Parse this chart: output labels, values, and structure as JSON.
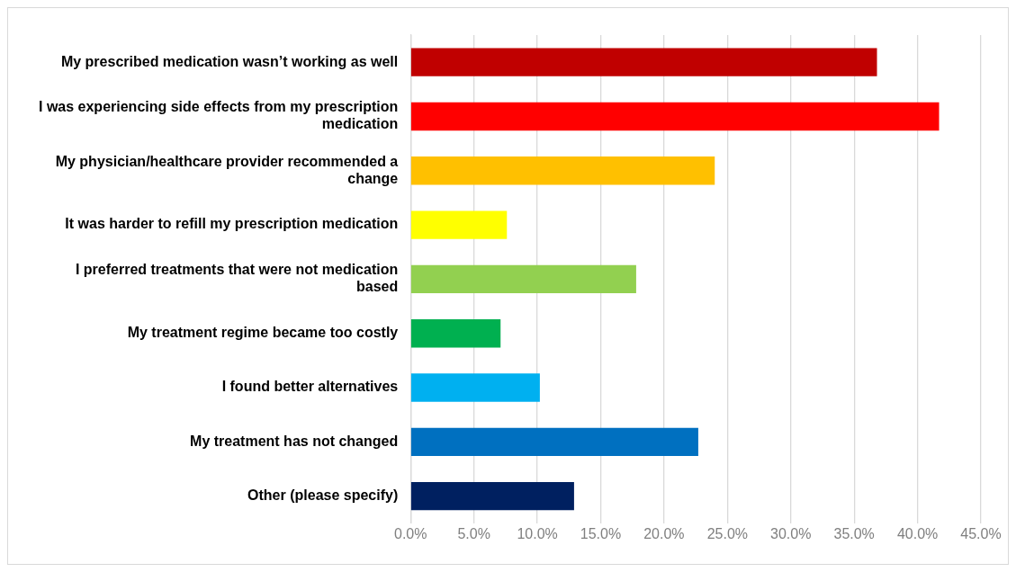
{
  "chart_data": {
    "type": "bar",
    "orientation": "horizontal",
    "categories": [
      "My prescribed medication wasn’t working as well",
      "I was experiencing side effects from my prescription medication",
      "My physician/healthcare provider recommended a change",
      "It was harder to refill my prescription medication",
      "I preferred treatments that were not medication based",
      "My treatment regime became too costly",
      "I found better alternatives",
      "My treatment has not changed",
      "Other (please specify)"
    ],
    "values": [
      36.8,
      41.7,
      24.0,
      7.6,
      17.8,
      7.1,
      10.2,
      22.7,
      12.9
    ],
    "colors": [
      "#c00000",
      "#ff0000",
      "#ffc000",
      "#ffff00",
      "#92d050",
      "#00b050",
      "#00b0f0",
      "#0070c0",
      "#002060"
    ],
    "xlim": [
      0,
      45
    ],
    "xticks": [
      {
        "value": 0,
        "label": "0.0%"
      },
      {
        "value": 5,
        "label": "5.0%"
      },
      {
        "value": 10,
        "label": "10.0%"
      },
      {
        "value": 15,
        "label": "15.0%"
      },
      {
        "value": 20,
        "label": "20.0%"
      },
      {
        "value": 25,
        "label": "25.0%"
      },
      {
        "value": 30,
        "label": "30.0%"
      },
      {
        "value": 35,
        "label": "35.0%"
      },
      {
        "value": 40,
        "label": "40.0%"
      },
      {
        "value": 45,
        "label": "45.0%"
      }
    ],
    "grid": "x"
  }
}
